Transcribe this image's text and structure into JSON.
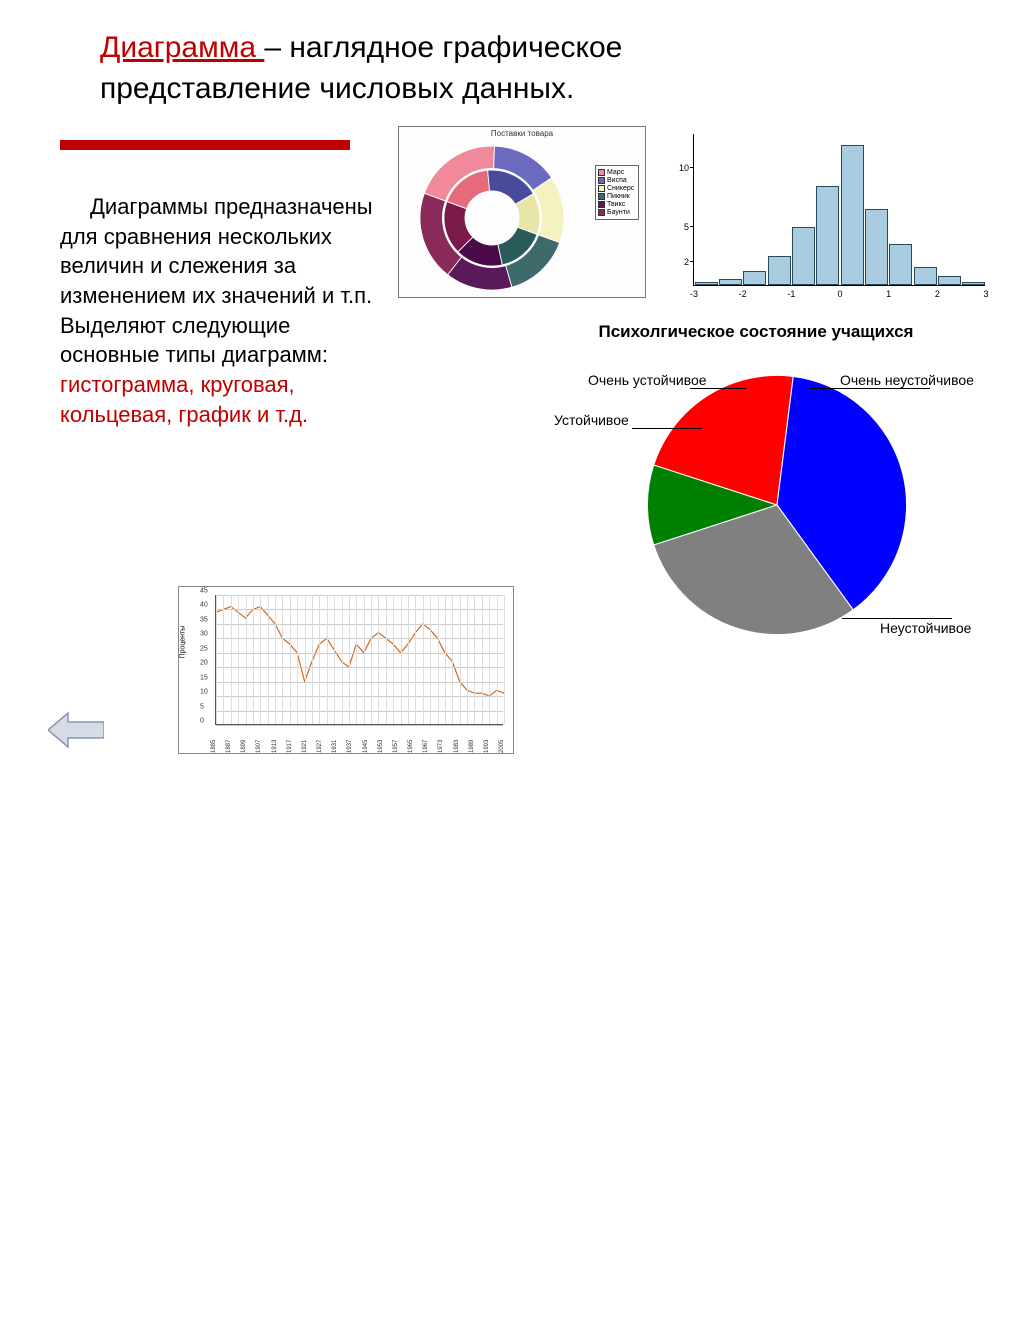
{
  "title": {
    "word": "Диаграмма ",
    "rest1": "– наглядное графическое",
    "rest2": "представление числовых данных."
  },
  "body": {
    "p1": "Диаграммы предназначены для сравнения нескольких величин и слежения за изменением их значений и т.п.",
    "p2a": "Выделяют следующие основные типы диаграмм: ",
    "p2b": "гистограмма, круговая, кольцевая, график и т.д."
  },
  "donut": {
    "type": "doughnut",
    "title": "Поставки товара",
    "background": "#fdfdfd",
    "outer_ring": [
      {
        "value": 20,
        "color": "#f08a9a"
      },
      {
        "value": 15,
        "color": "#6a6abf"
      },
      {
        "value": 15,
        "color": "#f5f2c2"
      },
      {
        "value": 15,
        "color": "#3d6a6a"
      },
      {
        "value": 15,
        "color": "#5a1a5a"
      },
      {
        "value": 20,
        "color": "#8a2a5a"
      }
    ],
    "inner_ring": [
      {
        "value": 18,
        "color": "#e56a7a"
      },
      {
        "value": 18,
        "color": "#4a4a9a"
      },
      {
        "value": 14,
        "color": "#e8e5a8"
      },
      {
        "value": 16,
        "color": "#2a5a5a"
      },
      {
        "value": 16,
        "color": "#4a0a4a"
      },
      {
        "value": 18,
        "color": "#7a1a4a"
      }
    ],
    "legend": [
      {
        "label": "Марс",
        "color": "#f08a9a"
      },
      {
        "label": "Виспа",
        "color": "#6a6abf"
      },
      {
        "label": "Сникерс",
        "color": "#f5f2c2"
      },
      {
        "label": "Пикник",
        "color": "#3d6a6a"
      },
      {
        "label": "Твикс",
        "color": "#5a1a5a"
      },
      {
        "label": "Баунти",
        "color": "#8a2a5a"
      }
    ]
  },
  "hist": {
    "type": "histogram",
    "bar_color": "#a8cde0",
    "bar_border": "#2a4a5a",
    "xlim": [
      -3,
      3
    ],
    "ylim": [
      0,
      13
    ],
    "ytick_values": [
      2,
      5,
      10
    ],
    "xtick_values": [
      -3,
      -2,
      -1,
      0,
      1,
      2,
      3
    ],
    "bins": [
      {
        "x": -2.75,
        "h": 0.3
      },
      {
        "x": -2.25,
        "h": 0.5
      },
      {
        "x": -1.75,
        "h": 1.2
      },
      {
        "x": -1.25,
        "h": 2.5
      },
      {
        "x": -0.75,
        "h": 5.0
      },
      {
        "x": -0.25,
        "h": 8.5
      },
      {
        "x": 0.25,
        "h": 12.0
      },
      {
        "x": 0.75,
        "h": 6.5
      },
      {
        "x": 1.25,
        "h": 3.5
      },
      {
        "x": 1.75,
        "h": 1.5
      },
      {
        "x": 2.25,
        "h": 0.8
      },
      {
        "x": 2.75,
        "h": 0.3
      }
    ]
  },
  "pie": {
    "type": "pie",
    "title": "Психолгическое состояние учащихся",
    "slices": [
      {
        "label": "Очень устойчивое",
        "value": 10,
        "color": "#008000"
      },
      {
        "label": "Очень неустойчивое",
        "value": 22,
        "color": "#ff0000"
      },
      {
        "label": "Неустойчивое",
        "value": 38,
        "color": "#0000ff"
      },
      {
        "label": "Устойчивое",
        "value": 30,
        "color": "#808080"
      }
    ],
    "start_angle": -108
  },
  "line": {
    "type": "line",
    "line_color": "#d2691e",
    "grid_color": "#cccccc",
    "ylabel": "Проценты",
    "ylim": [
      0,
      45
    ],
    "ytick_step": 5,
    "yticks": [
      0,
      5,
      10,
      15,
      20,
      25,
      30,
      35,
      40,
      45
    ],
    "xticks": [
      "1885",
      "1887",
      "1899",
      "1907",
      "1913",
      "1917",
      "1921",
      "1927",
      "1931",
      "1937",
      "1945",
      "1953",
      "1957",
      "1965",
      "1967",
      "1973",
      "1983",
      "1989",
      "1993",
      "2005"
    ],
    "values": [
      39,
      40,
      41,
      39,
      37,
      40,
      41,
      38,
      35,
      30,
      28,
      25,
      15,
      22,
      28,
      30,
      26,
      22,
      20,
      28,
      25,
      30,
      32,
      30,
      28,
      25,
      28,
      32,
      35,
      33,
      30,
      25,
      22,
      15,
      12,
      11,
      11,
      10,
      12,
      11
    ]
  },
  "arrow": {
    "fill": "#d6dce6",
    "stroke": "#8a96b0"
  }
}
